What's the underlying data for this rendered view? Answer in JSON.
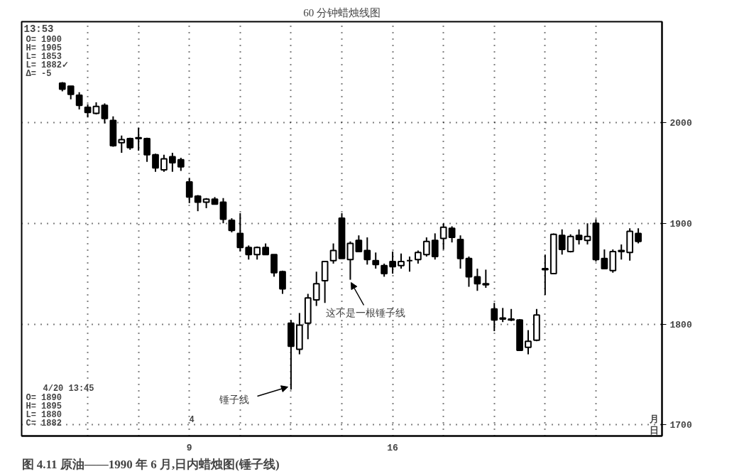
{
  "chart_data": {
    "type": "candlestick",
    "title": "60 分钟蜡烛线图",
    "categories": [
      null,
      null,
      null,
      null,
      null,
      null,
      null,
      null,
      null,
      null,
      null,
      null,
      null,
      null,
      null,
      "9",
      null,
      null,
      null,
      null,
      null,
      null,
      null,
      null,
      null,
      null,
      null,
      null,
      null,
      null,
      null,
      null,
      null,
      null,
      null,
      null,
      null,
      null,
      null,
      "16",
      null,
      null,
      null,
      null,
      null,
      null,
      null,
      null,
      null,
      null,
      null,
      null,
      null,
      null,
      null,
      null,
      null,
      null,
      null,
      null,
      null,
      null,
      null,
      null,
      null,
      null,
      null,
      null,
      null
    ],
    "ohlc": [
      [
        2039,
        2040,
        2031,
        2033
      ],
      [
        2036,
        2036,
        2023,
        2028
      ],
      [
        2027,
        2030,
        2013,
        2017
      ],
      [
        2015,
        2018,
        2005,
        2010
      ],
      [
        2009,
        2020,
        2008,
        2016
      ],
      [
        2017,
        2019,
        1999,
        2004
      ],
      [
        2002,
        2006,
        1976,
        1977
      ],
      [
        1980,
        1987,
        1970,
        1983
      ],
      [
        1984,
        1985,
        1973,
        1975
      ],
      [
        1985,
        1995,
        1972,
        1984
      ],
      [
        1984,
        1985,
        1961,
        1968
      ],
      [
        1968,
        1969,
        1951,
        1955
      ],
      [
        1953,
        1968,
        1951,
        1964
      ],
      [
        1966,
        1970,
        1951,
        1960
      ],
      [
        1963,
        1965,
        1952,
        1956
      ],
      [
        1941,
        1945,
        1920,
        1926
      ],
      [
        1927,
        1928,
        1912,
        1921
      ],
      [
        1921,
        1925,
        1915,
        1924
      ],
      [
        1924,
        1926,
        1919,
        1919
      ],
      [
        1921,
        1925,
        1900,
        1904
      ],
      [
        1903,
        1905,
        1891,
        1893
      ],
      [
        1890,
        1910,
        1872,
        1876
      ],
      [
        1876,
        1878,
        1864,
        1869
      ],
      [
        1869,
        1877,
        1864,
        1876
      ],
      [
        1876,
        1880,
        1869,
        1869
      ],
      [
        1869,
        1869,
        1847,
        1851
      ],
      [
        1852,
        1853,
        1830,
        1835
      ],
      [
        1801,
        1804,
        1735,
        1778
      ],
      [
        1775,
        1811,
        1770,
        1799
      ],
      [
        1801,
        1830,
        1785,
        1826
      ],
      [
        1824,
        1852,
        1818,
        1840
      ],
      [
        1843,
        1862,
        1821,
        1862
      ],
      [
        1863,
        1880,
        1860,
        1873
      ],
      [
        1905,
        1910,
        1865,
        1865
      ],
      [
        1864,
        1882,
        1844,
        1880
      ],
      [
        1883,
        1888,
        1872,
        1872
      ],
      [
        1873,
        1886,
        1859,
        1864
      ],
      [
        1863,
        1871,
        1855,
        1859
      ],
      [
        1858,
        1860,
        1847,
        1850
      ],
      [
        1862,
        1872,
        1850,
        1857
      ],
      [
        1858,
        1870,
        1855,
        1862
      ],
      [
        1863,
        1867,
        1852,
        1863
      ],
      [
        1864,
        1873,
        1860,
        1871
      ],
      [
        1869,
        1886,
        1867,
        1882
      ],
      [
        1883,
        1890,
        1864,
        1867
      ],
      [
        1885,
        1900,
        1874,
        1896
      ],
      [
        1895,
        1897,
        1881,
        1886
      ],
      [
        1884,
        1888,
        1855,
        1865
      ],
      [
        1865,
        1867,
        1837,
        1847
      ],
      [
        1847,
        1855,
        1833,
        1840
      ],
      [
        1840,
        1854,
        1836,
        1839
      ],
      [
        1815,
        1821,
        1793,
        1804
      ],
      [
        1806,
        1816,
        1802,
        1805
      ],
      [
        1805,
        1815,
        1803,
        1804
      ],
      [
        1804,
        1805,
        1774,
        1774
      ],
      [
        1777,
        1794,
        1770,
        1783
      ],
      [
        1784,
        1815,
        1783,
        1809
      ],
      [
        1855,
        1869,
        1829,
        1854
      ],
      [
        1850,
        1890,
        1850,
        1889
      ],
      [
        1888,
        1894,
        1869,
        1874
      ],
      [
        1872,
        1889,
        1871,
        1887
      ],
      [
        1888,
        1894,
        1879,
        1884
      ],
      [
        1883,
        1900,
        1879,
        1887
      ],
      [
        1900,
        1904,
        1862,
        1864
      ],
      [
        1865,
        1874,
        1855,
        1855
      ],
      [
        1853,
        1874,
        1851,
        1872
      ],
      [
        1873,
        1879,
        1864,
        1872
      ],
      [
        1871,
        1895,
        1863,
        1892
      ],
      [
        1890,
        1895,
        1880,
        1882
      ]
    ],
    "ylim": [
      1689,
      2100
    ],
    "yticks": [
      1700,
      1800,
      1900,
      2000
    ],
    "grid": true,
    "annotations": [
      "13:53",
      "O= 1900",
      "H= 1905",
      "L= 1853",
      "L= 1882✓",
      "Δ=    -5",
      "4/20 13:45",
      "O= 1890",
      "H= 1895",
      "L= 1880",
      "C= 1882",
      "4",
      "月",
      "日",
      "图 4.11   原油——1990 年 6 月,日内蜡烛图(锤子线)",
      "锤子线",
      "这不是一根锤子线"
    ]
  }
}
